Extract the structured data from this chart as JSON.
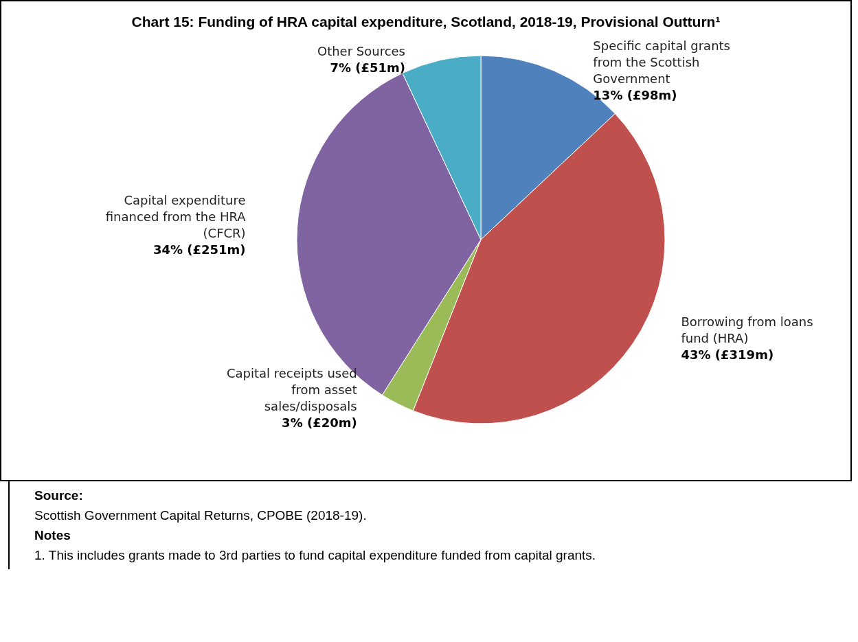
{
  "chart_data": {
    "type": "pie",
    "title": "Chart 15:  Funding of HRA capital expenditure, Scotland, 2018-19, Provisional Outturn¹",
    "categories": [
      "Specific capital grants from the Scottish Government",
      "Borrowing from loans fund (HRA)",
      "Capital receipts used from asset sales/disposals",
      "Capital expenditure financed from the HRA (CFCR)",
      "Other Sources"
    ],
    "values": [
      13,
      43,
      3,
      34,
      7
    ],
    "value_labels": [
      "13% (£98m)",
      "43% (£319m)",
      "3% (£20m)",
      "34% (£251m)",
      "7% (£51m)"
    ],
    "colors": [
      "#4f81bd",
      "#c0504d",
      "#9bbb59",
      "#8064a2",
      "#4bacc6"
    ],
    "annotations": [
      "Source:",
      "Scottish Government Capital Returns, CPOBE (2018-19).",
      "Notes",
      "1. This includes grants made to 3rd parties to fund capital expenditure funded from capital grants."
    ]
  }
}
